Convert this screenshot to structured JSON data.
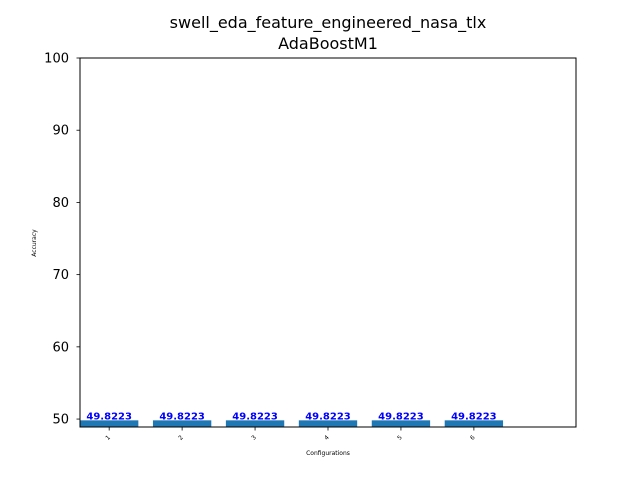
{
  "chart_data": {
    "type": "bar",
    "title": "swell_eda_feature_engineered_nasa_tlx",
    "subtitle": "AdaBoostM1",
    "xlabel": "Configurations",
    "ylabel": "Accuracy",
    "categories": [
      "1",
      "2",
      "3",
      "4",
      "5",
      "6"
    ],
    "values": [
      49.8223,
      49.8223,
      49.8223,
      49.8223,
      49.8223,
      49.8223
    ],
    "data_labels": [
      "49.8223",
      "49.8223",
      "49.8223",
      "49.8223",
      "49.8223",
      "49.8223"
    ],
    "ylim": [
      48.9,
      100
    ],
    "yticks": [
      50,
      60,
      70,
      80,
      90,
      100
    ],
    "ytick_labels": [
      "50",
      "60",
      "70",
      "80",
      "90",
      "100"
    ],
    "grid": false,
    "legend": "none",
    "bar_color": "#1f77b4",
    "label_color": "#0000ff"
  }
}
